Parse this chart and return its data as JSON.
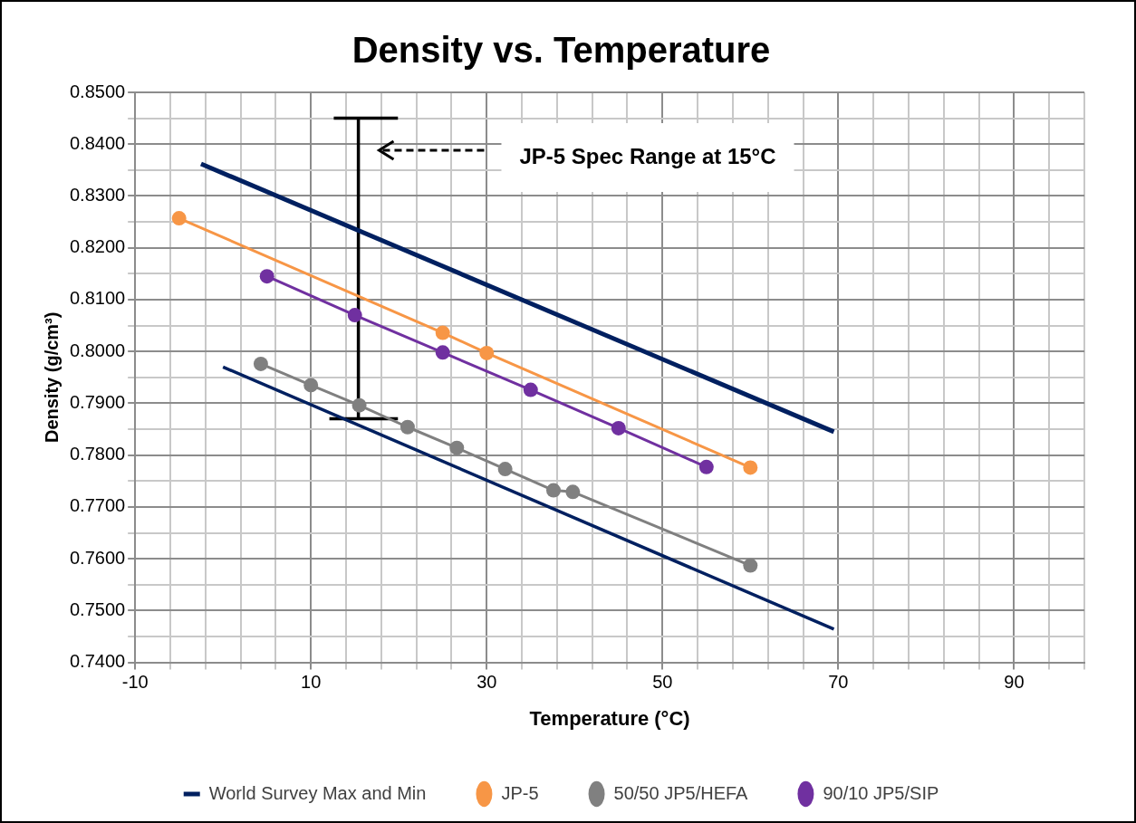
{
  "chart_data": {
    "type": "line",
    "title": "Density vs. Temperature",
    "xlabel": "Temperature (°C)",
    "ylabel": "Density (g/cm³)",
    "xlim": [
      -10,
      98
    ],
    "ylim": [
      0.74,
      0.85
    ],
    "xticks": [
      -10,
      {
        "value": -6,
        "label": null
      },
      {
        "value": -2,
        "label": null
      },
      {
        "value": 2,
        "label": null
      },
      {
        "value": 6,
        "label": null
      },
      10,
      {
        "value": 14,
        "label": null
      },
      {
        "value": 18,
        "label": null
      },
      {
        "value": 22,
        "label": null
      },
      {
        "value": 26,
        "label": null
      },
      30,
      {
        "value": 34,
        "label": null
      },
      {
        "value": 38,
        "label": null
      },
      {
        "value": 42,
        "label": null
      },
      {
        "value": 46,
        "label": null
      },
      50,
      {
        "value": 54,
        "label": null
      },
      {
        "value": 58,
        "label": null
      },
      {
        "value": 62,
        "label": null
      },
      {
        "value": 66,
        "label": null
      },
      70,
      {
        "value": 74,
        "label": null
      },
      {
        "value": 78,
        "label": null
      },
      {
        "value": 82,
        "label": null
      },
      {
        "value": 86,
        "label": null
      },
      90,
      {
        "value": 94,
        "label": null
      },
      {
        "value": 98,
        "label": null
      }
    ],
    "yticks": [
      {
        "value": 0.74,
        "label": "0.7400"
      },
      {
        "value": 0.745,
        "label": null
      },
      {
        "value": 0.75,
        "label": "0.7500"
      },
      {
        "value": 0.755,
        "label": null
      },
      {
        "value": 0.76,
        "label": "0.7600"
      },
      {
        "value": 0.765,
        "label": null
      },
      {
        "value": 0.77,
        "label": "0.7700"
      },
      {
        "value": 0.775,
        "label": null
      },
      {
        "value": 0.78,
        "label": "0.7800"
      },
      {
        "value": 0.785,
        "label": null
      },
      {
        "value": 0.79,
        "label": "0.7900"
      },
      {
        "value": 0.795,
        "label": null
      },
      {
        "value": 0.8,
        "label": "0.8000"
      },
      {
        "value": 0.805,
        "label": null
      },
      {
        "value": 0.81,
        "label": "0.8100"
      },
      {
        "value": 0.815,
        "label": null
      },
      {
        "value": 0.82,
        "label": "0.8200"
      },
      {
        "value": 0.825,
        "label": null
      },
      {
        "value": 0.83,
        "label": "0.8300"
      },
      {
        "value": 0.835,
        "label": null
      },
      {
        "value": 0.84,
        "label": "0.8400"
      },
      {
        "value": 0.845,
        "label": null
      },
      {
        "value": 0.85,
        "label": "0.8500"
      }
    ],
    "grid": true,
    "legend": "bottom",
    "annotations": [
      "JP-5 Spec Range at 15°C"
    ],
    "series": [
      {
        "name": "World Survey Max and Min",
        "color": "#002060",
        "marker": "none",
        "x": [
          -2.5,
          69.5
        ],
        "values": [
          0.8362,
          0.7845
        ]
      },
      {
        "color": "#002060",
        "marker": "none",
        "x": [
          0,
          69.5
        ],
        "values": [
          0.797,
          0.7464
        ]
      },
      {
        "name": "JP-5",
        "color": "#f79646",
        "marker": "circle",
        "x": [
          -5,
          25,
          30,
          60
        ],
        "values": [
          0.8257,
          0.8036,
          0.7997,
          0.7776
        ]
      },
      {
        "name": "50/50 JP5/HEFA",
        "color": "#808080",
        "marker": "circle",
        "x": [
          4.3,
          10,
          15.5,
          21,
          26.6,
          32.1,
          37.6,
          39.8,
          60
        ],
        "values": [
          0.7976,
          0.7935,
          0.7896,
          0.7854,
          0.7814,
          0.7773,
          0.7732,
          0.7729,
          0.7587
        ]
      },
      {
        "name": "90/10 JP5/SIP",
        "color": "#7030a0",
        "marker": "circle",
        "x": [
          5,
          15,
          25,
          35,
          45,
          55
        ],
        "values": [
          0.8145,
          0.807,
          0.7998,
          0.7926,
          0.7852,
          0.7777
        ]
      },
      {
        "color": "#000000",
        "marker": "none",
        "x": [
          15.4,
          15.4
        ],
        "values": [
          0.787,
          0.845
        ]
      },
      {
        "color": "#000000",
        "marker": "none",
        "x": [
          12.6,
          19.9
        ],
        "values": [
          0.845,
          0.845
        ]
      },
      {
        "color": "#000000",
        "marker": "none",
        "x": [
          12.1,
          19.9
        ],
        "values": [
          0.787,
          0.787
        ]
      }
    ]
  }
}
